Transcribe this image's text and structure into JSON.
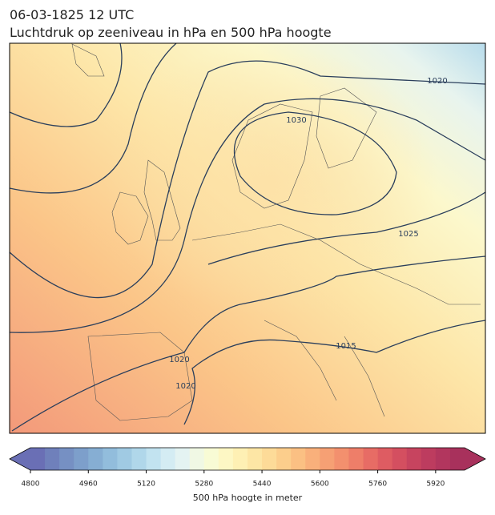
{
  "header": {
    "title": "06-03-1825 12 UTC",
    "subtitle": "Luchtdruk op zeeniveau in hPa en 500 hPa hoogte"
  },
  "map": {
    "isobar_labels": [
      "1020",
      "1030",
      "1025",
      "1015",
      "1020",
      "1020"
    ]
  },
  "colorbar": {
    "label": "500 hPa hoogte in meter",
    "range": [
      4800,
      6000
    ],
    "ticks": [
      4800,
      4960,
      5120,
      5280,
      5440,
      5600,
      5760,
      5920
    ],
    "colors": [
      "#6a6fb5",
      "#6f80bb",
      "#7690c3",
      "#7d9fcb",
      "#86aed3",
      "#92bddc",
      "#a0cae3",
      "#b0d7ea",
      "#c2e3f0",
      "#d4ecf3",
      "#e4f3f2",
      "#f0f8e4",
      "#f8fbd5",
      "#fdf7c4",
      "#fef0b4",
      "#fde6a5",
      "#fddb98",
      "#fcce8c",
      "#fbc083",
      "#f9b07b",
      "#f6a074",
      "#f3906e",
      "#ee7e69",
      "#e76c65",
      "#de5c62",
      "#d44f60",
      "#c7445f",
      "#bd3c5f",
      "#b2365e",
      "#a8315c"
    ]
  }
}
